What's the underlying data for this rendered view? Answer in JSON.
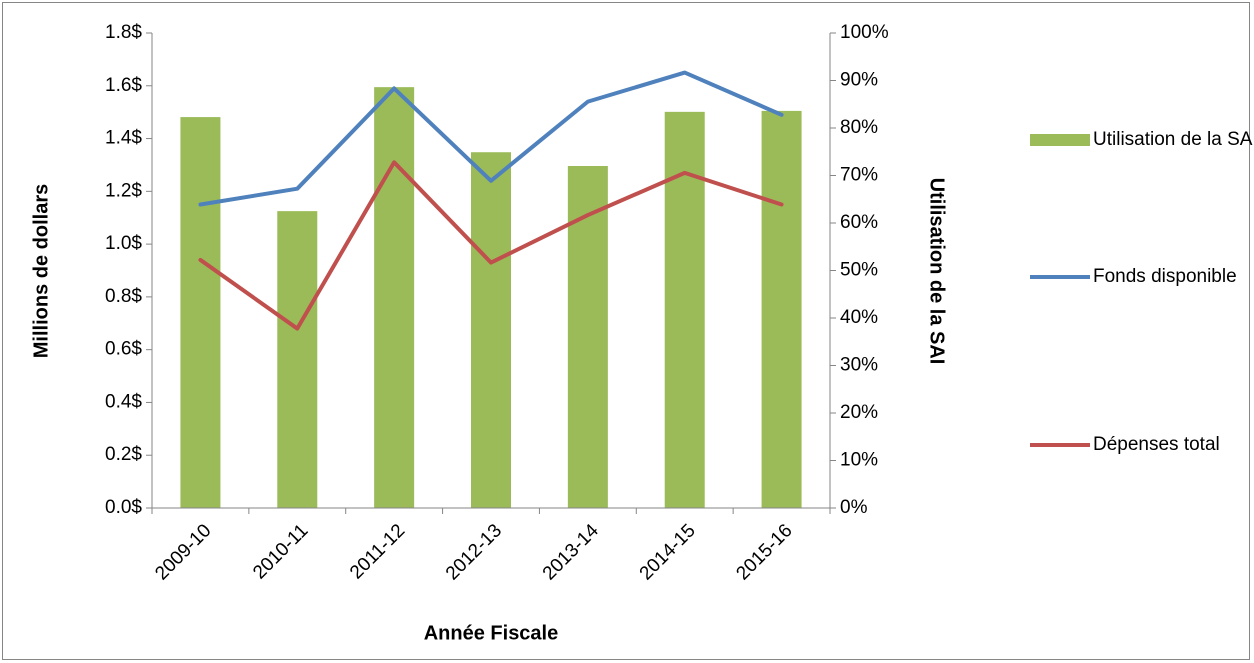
{
  "chart_data": {
    "type": "bar_line",
    "ylabel": "Millions de dollars",
    "y2label": "Utilisation de la SAI",
    "xlabel": "Année Fiscale",
    "categories": [
      "2009-10",
      "2010-11",
      "2011-12",
      "2012-13",
      "2013-14",
      "2014-15",
      "2015-16"
    ],
    "series": [
      {
        "name": "Utilisation de la SAI",
        "type": "bar",
        "axis": "y2",
        "color": "#9bbb59",
        "values": [
          82.3,
          62.5,
          88.6,
          74.9,
          72,
          83.4,
          83.6
        ]
      },
      {
        "name": "Fonds disponible",
        "type": "line",
        "color": "#4f81bd",
        "values": [
          1.15,
          1.21,
          1.59,
          1.24,
          1.54,
          1.65,
          1.49
        ]
      },
      {
        "name": "Dépenses total",
        "type": "line",
        "color": "#c0504d",
        "values": [
          0.94,
          0.68,
          1.31,
          0.93,
          1.11,
          1.27,
          1.15
        ]
      }
    ],
    "ylim": [
      0,
      1.8
    ],
    "yticks": [
      {
        "value": 0,
        "label": "0.0$"
      },
      {
        "value": 0.2,
        "label": "0.2$"
      },
      {
        "value": 0.4,
        "label": "0.4$"
      },
      {
        "value": 0.6,
        "label": "0.6$"
      },
      {
        "value": 0.8,
        "label": "0.8$"
      },
      {
        "value": 1.0,
        "label": "1.0$"
      },
      {
        "value": 1.2,
        "label": "1.2$"
      },
      {
        "value": 1.4,
        "label": "1.4$"
      },
      {
        "value": 1.6,
        "label": "1.6$"
      },
      {
        "value": 1.8,
        "label": "1.8$"
      }
    ],
    "y2lim": [
      0,
      100
    ],
    "y2ticks": [
      {
        "value": 0,
        "label": "0%"
      },
      {
        "value": 10,
        "label": "10%"
      },
      {
        "value": 20,
        "label": "20%"
      },
      {
        "value": 30,
        "label": "30%"
      },
      {
        "value": 40,
        "label": "40%"
      },
      {
        "value": 50,
        "label": "50%"
      },
      {
        "value": 60,
        "label": "60%"
      },
      {
        "value": 70,
        "label": "70%"
      },
      {
        "value": 80,
        "label": "80%"
      },
      {
        "value": 90,
        "label": "90%"
      },
      {
        "value": 100,
        "label": "100%"
      }
    ],
    "legend": "right"
  }
}
